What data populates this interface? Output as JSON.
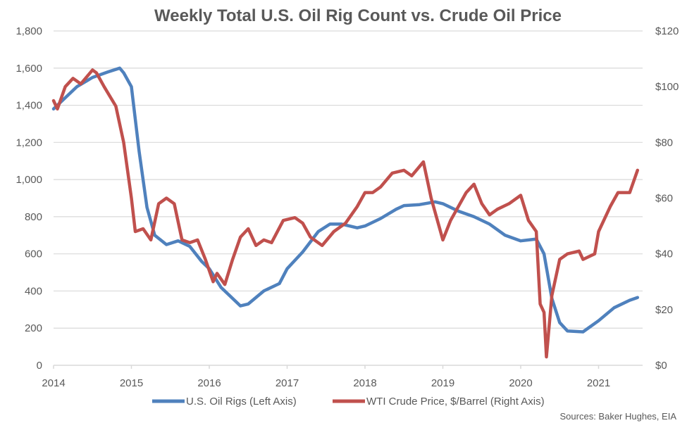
{
  "chart_data": {
    "type": "line",
    "title": "Weekly Total U.S. Oil Rig Count vs. Crude Oil Price",
    "xlabel": "",
    "ylabel_left": "",
    "ylabel_right": "",
    "x_range": [
      2014,
      2021.55
    ],
    "x_ticks": [
      "2014",
      "2015",
      "2016",
      "2017",
      "2018",
      "2019",
      "2020",
      "2021"
    ],
    "x_tick_values": [
      2014,
      2015,
      2016,
      2017,
      2018,
      2019,
      2020,
      2021
    ],
    "ylim_left": [
      0,
      1800
    ],
    "y_ticks_left": [
      "0",
      "200",
      "400",
      "600",
      "800",
      "1,000",
      "1,200",
      "1,400",
      "1,600",
      "1,800"
    ],
    "y_tick_values_left": [
      0,
      200,
      400,
      600,
      800,
      1000,
      1200,
      1400,
      1600,
      1800
    ],
    "ylim_right": [
      0,
      120
    ],
    "y_ticks_right": [
      "$0",
      "$20",
      "$40",
      "$60",
      "$80",
      "$100",
      "$120"
    ],
    "y_tick_values_right": [
      0,
      20,
      40,
      60,
      80,
      100,
      120
    ],
    "grid": true,
    "legend_position": "bottom",
    "series": [
      {
        "name": "U.S. Oil Rigs (Left Axis)",
        "axis": "left",
        "color": "#4f81bd",
        "x": [
          2014.0,
          2014.1,
          2014.3,
          2014.5,
          2014.7,
          2014.85,
          2014.9,
          2015.0,
          2015.1,
          2015.2,
          2015.3,
          2015.45,
          2015.6,
          2015.75,
          2015.9,
          2016.0,
          2016.15,
          2016.3,
          2016.4,
          2016.5,
          2016.7,
          2016.9,
          2017.0,
          2017.2,
          2017.4,
          2017.55,
          2017.7,
          2017.9,
          2018.0,
          2018.2,
          2018.4,
          2018.5,
          2018.7,
          2018.9,
          2019.0,
          2019.2,
          2019.4,
          2019.6,
          2019.8,
          2020.0,
          2020.2,
          2020.3,
          2020.4,
          2020.5,
          2020.6,
          2020.8,
          2021.0,
          2021.2,
          2021.4,
          2021.5
        ],
        "values": [
          1380,
          1420,
          1500,
          1550,
          1580,
          1600,
          1575,
          1500,
          1150,
          850,
          700,
          650,
          670,
          640,
          560,
          520,
          420,
          360,
          320,
          330,
          400,
          440,
          520,
          610,
          720,
          760,
          760,
          740,
          750,
          790,
          840,
          860,
          865,
          880,
          870,
          830,
          800,
          760,
          700,
          670,
          680,
          600,
          360,
          230,
          185,
          180,
          240,
          310,
          350,
          365
        ]
      },
      {
        "name": "WTI Crude Price, $/Barrel (Right Axis)",
        "axis": "right",
        "color": "#c0504d",
        "x": [
          2014.0,
          2014.05,
          2014.15,
          2014.25,
          2014.35,
          2014.5,
          2014.55,
          2014.65,
          2014.8,
          2014.9,
          2015.0,
          2015.05,
          2015.15,
          2015.25,
          2015.35,
          2015.45,
          2015.55,
          2015.65,
          2015.75,
          2015.85,
          2015.95,
          2016.05,
          2016.1,
          2016.2,
          2016.3,
          2016.4,
          2016.5,
          2016.6,
          2016.7,
          2016.8,
          2016.95,
          2017.1,
          2017.2,
          2017.3,
          2017.45,
          2017.6,
          2017.75,
          2017.9,
          2018.0,
          2018.1,
          2018.2,
          2018.35,
          2018.5,
          2018.6,
          2018.75,
          2018.85,
          2018.95,
          2019.0,
          2019.1,
          2019.3,
          2019.4,
          2019.5,
          2019.6,
          2019.7,
          2019.85,
          2020.0,
          2020.1,
          2020.2,
          2020.25,
          2020.3,
          2020.33,
          2020.4,
          2020.5,
          2020.6,
          2020.75,
          2020.8,
          2020.95,
          2021.0,
          2021.15,
          2021.25,
          2021.4,
          2021.5
        ],
        "values": [
          95,
          92,
          100,
          103,
          101,
          106,
          105,
          100,
          93,
          80,
          60,
          48,
          49,
          45,
          58,
          60,
          58,
          45,
          44,
          45,
          38,
          30,
          33,
          29,
          38,
          46,
          49,
          43,
          45,
          44,
          52,
          53,
          51,
          46,
          43,
          48,
          51,
          57,
          62,
          62,
          64,
          69,
          70,
          68,
          73,
          60,
          50,
          45,
          52,
          62,
          65,
          58,
          54,
          56,
          58,
          61,
          52,
          48,
          22,
          19,
          3,
          25,
          38,
          40,
          41,
          38,
          40,
          48,
          57,
          62,
          62,
          70
        ]
      }
    ],
    "source_note": "Sources: Baker Hughes, EIA"
  }
}
